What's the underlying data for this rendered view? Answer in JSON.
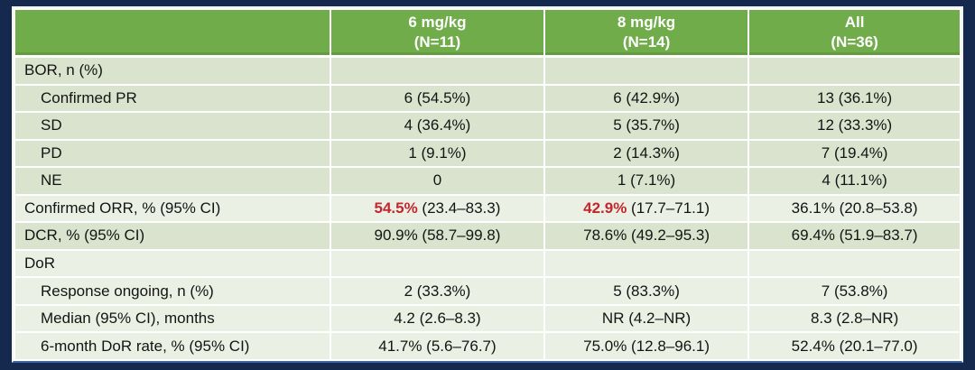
{
  "table": {
    "header": {
      "columns": [
        {
          "label": "",
          "sub": ""
        },
        {
          "label": "6 mg/kg",
          "sub": "(N=11)"
        },
        {
          "label": "8 mg/kg",
          "sub": "(N=14)"
        },
        {
          "label": "All",
          "sub": "(N=36)"
        }
      ]
    },
    "rows": [
      {
        "label": "BOR, n (%)",
        "indent": false,
        "shade": "sage",
        "cells": [
          {
            "text": ""
          },
          {
            "text": ""
          },
          {
            "text": ""
          }
        ]
      },
      {
        "label": "Confirmed PR",
        "indent": true,
        "shade": "sage",
        "cells": [
          {
            "text": "6 (54.5%)"
          },
          {
            "text": "6 (42.9%)"
          },
          {
            "text": "13 (36.1%)"
          }
        ]
      },
      {
        "label": "SD",
        "indent": true,
        "shade": "sage",
        "cells": [
          {
            "text": "4 (36.4%)"
          },
          {
            "text": "5 (35.7%)"
          },
          {
            "text": "12 (33.3%)"
          }
        ]
      },
      {
        "label": "PD",
        "indent": true,
        "shade": "sage",
        "cells": [
          {
            "text": "1 (9.1%)"
          },
          {
            "text": "2 (14.3%)"
          },
          {
            "text": "7 (19.4%)"
          }
        ]
      },
      {
        "label": "NE",
        "indent": true,
        "shade": "sage",
        "cells": [
          {
            "text": "0"
          },
          {
            "text": "1 (7.1%)"
          },
          {
            "text": "4 (11.1%)"
          }
        ]
      },
      {
        "label": "Confirmed ORR, % (95% CI)",
        "indent": false,
        "shade": "light",
        "cells": [
          {
            "em": "54.5%",
            "text": "(23.4–83.3)"
          },
          {
            "em": "42.9%",
            "text": "(17.7–71.1)"
          },
          {
            "text": "36.1% (20.8–53.8)"
          }
        ]
      },
      {
        "label": "DCR, % (95% CI)",
        "indent": false,
        "shade": "sage",
        "cells": [
          {
            "text": "90.9% (58.7–99.8)"
          },
          {
            "text": "78.6% (49.2–95.3)"
          },
          {
            "text": "69.4% (51.9–83.7)"
          }
        ]
      },
      {
        "label": "DoR",
        "indent": false,
        "shade": "light",
        "cells": [
          {
            "text": ""
          },
          {
            "text": ""
          },
          {
            "text": ""
          }
        ]
      },
      {
        "label": "Response ongoing, n (%)",
        "indent": true,
        "shade": "light",
        "cells": [
          {
            "text": "2 (33.3%)"
          },
          {
            "text": "5 (83.3%)"
          },
          {
            "text": "7 (53.8%)"
          }
        ]
      },
      {
        "label": "Median (95% CI), months",
        "indent": true,
        "shade": "light",
        "cells": [
          {
            "text": "4.2 (2.6–8.3)"
          },
          {
            "text": "NR (4.2–NR)"
          },
          {
            "text": "8.3 (2.8–NR)"
          }
        ]
      },
      {
        "label": "6-month DoR rate, % (95% CI)",
        "indent": true,
        "shade": "light",
        "cells": [
          {
            "text": "41.7% (5.6–76.7)"
          },
          {
            "text": "75.0% (12.8–96.1)"
          },
          {
            "text": "52.4% (20.1–77.0)"
          }
        ]
      }
    ]
  },
  "colors": {
    "header_green": "#71AC4B",
    "header_green_edge": "#639C3E",
    "frame_navy": "#15294E",
    "row_sage": "#D9E3CE",
    "row_light": "#EBF0E5",
    "highlight_red": "#C2262E",
    "grid_white": "#FFFFFF"
  }
}
